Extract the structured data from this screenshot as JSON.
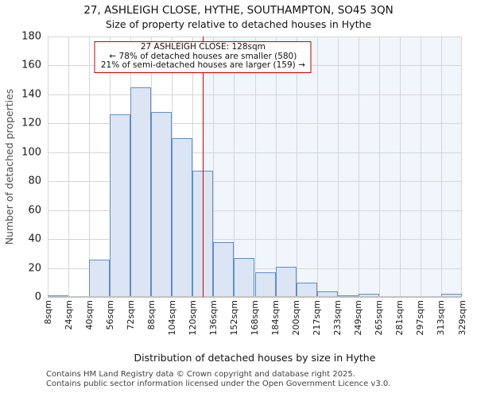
{
  "title": "27, ASHLEIGH CLOSE, HYTHE, SOUTHAMPTON, SO45 3QN",
  "subtitle": "Size of property relative to detached houses in Hythe",
  "chart_data": {
    "type": "bar",
    "bin_edges_sqm": [
      8,
      24,
      40,
      56,
      72,
      88,
      104,
      120,
      136,
      152,
      168,
      184,
      200,
      217,
      233,
      249,
      265,
      281,
      297,
      313,
      329
    ],
    "values": [
      1,
      0,
      26,
      126,
      145,
      128,
      110,
      87,
      38,
      27,
      17,
      21,
      10,
      4,
      1,
      2,
      0,
      0,
      0,
      2
    ],
    "x_tick_labels": [
      "8sqm",
      "24sqm",
      "40sqm",
      "56sqm",
      "72sqm",
      "88sqm",
      "104sqm",
      "120sqm",
      "136sqm",
      "152sqm",
      "168sqm",
      "184sqm",
      "200sqm",
      "217sqm",
      "233sqm",
      "249sqm",
      "265sqm",
      "281sqm",
      "297sqm",
      "313sqm",
      "329sqm"
    ],
    "y_ticks": [
      0,
      20,
      40,
      60,
      80,
      100,
      120,
      140,
      160,
      180
    ],
    "ylim": [
      0,
      180
    ],
    "grid": true,
    "xlabel": "Distribution of detached houses by size in Hythe",
    "ylabel": "Number of detached properties",
    "marker_sqm": 128,
    "annotation": {
      "line1": "27 ASHLEIGH CLOSE: 128sqm",
      "line2": "← 78% of detached houses are smaller (580)",
      "line3": "21% of semi-detached houses are larger (159) →"
    },
    "colors": {
      "bar_fill": "#dbe5f4",
      "bar_border": "#5e8fca",
      "marker_line": "#cc0000",
      "shade_right_of_marker": "#f1f5fc",
      "gridline": "#d6d6d6"
    }
  },
  "footer": {
    "line1": "Contains HM Land Registry data © Crown copyright and database right 2025.",
    "line2": "Contains public sector information licensed under the Open Government Licence v3.0."
  }
}
